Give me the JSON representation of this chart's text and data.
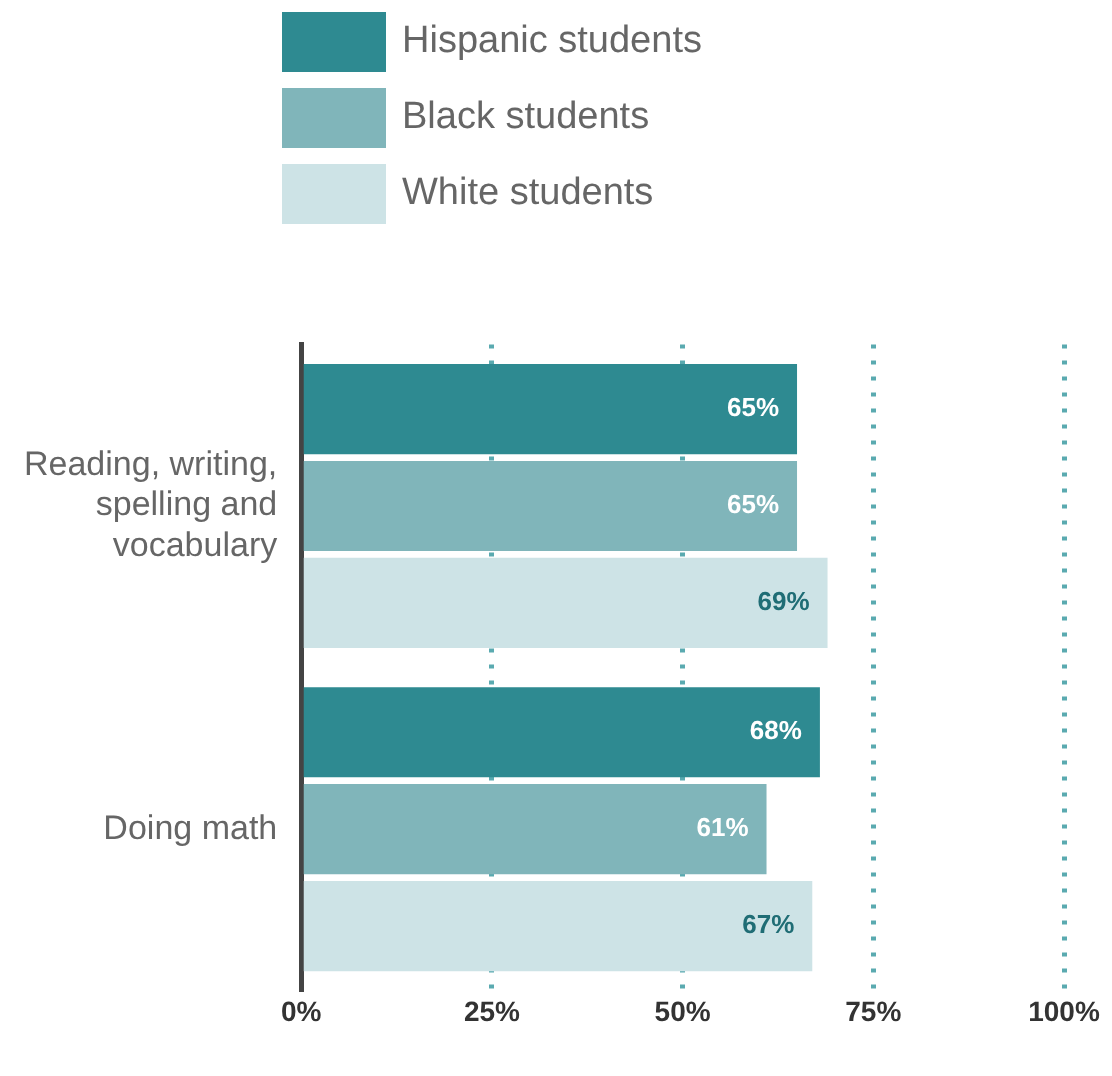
{
  "chart_data": {
    "type": "bar",
    "orientation": "horizontal",
    "categories": [
      "Reading, writing, spelling and vocabulary",
      "Doing math"
    ],
    "series": [
      {
        "name": "Hispanic students",
        "color": "#2e8a91",
        "values": [
          65,
          68
        ],
        "value_labels": [
          "65%",
          "68%"
        ]
      },
      {
        "name": "Black students",
        "color": "#80b5ba",
        "values": [
          65,
          61
        ],
        "value_labels": [
          "65%",
          "61%"
        ]
      },
      {
        "name": "White students",
        "color": "#cde3e6",
        "values": [
          69,
          67
        ],
        "value_labels": [
          "69%",
          "67%"
        ]
      }
    ],
    "xlim": [
      0,
      100
    ],
    "xticks": [
      {
        "value": 0,
        "label": "0%"
      },
      {
        "value": 25,
        "label": "25%"
      },
      {
        "value": 50,
        "label": "50%"
      },
      {
        "value": 75,
        "label": "75%"
      },
      {
        "value": 100,
        "label": "100%"
      }
    ],
    "grid": "x",
    "legend": "top"
  }
}
